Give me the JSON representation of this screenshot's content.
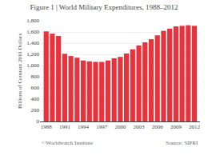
{
  "chart_data": {
    "type": "bar",
    "title": "Figure 1 | World Military Expenditures, 1988–2012",
    "ylabel": "Billions of Constant 2011 Dollars",
    "annotations": [
      "©Worldwatch Institute",
      "Source: SIPRI"
    ],
    "x": [
      1988,
      1989,
      1990,
      1991,
      1992,
      1993,
      1994,
      1995,
      1996,
      1997,
      1998,
      1999,
      2000,
      2001,
      2002,
      2003,
      2004,
      2005,
      2006,
      2007,
      2008,
      2009,
      2010,
      2011,
      2012
    ],
    "values": [
      1610,
      1570,
      1530,
      1210,
      1170,
      1140,
      1090,
      1075,
      1065,
      1065,
      1090,
      1130,
      1155,
      1215,
      1290,
      1360,
      1415,
      1470,
      1540,
      1620,
      1660,
      1700,
      1710,
      1720,
      1710
    ],
    "color": "#e8323c",
    "xlim": [
      1987.0,
      2012.9
    ],
    "xticks": [
      1988,
      1991,
      1994,
      1997,
      2000,
      2003,
      2006,
      2009,
      2012
    ],
    "ylim": [
      0,
      1800
    ],
    "yticks": [
      0,
      200,
      400,
      600,
      800,
      {
        "value": 1000,
        "label": "1,000"
      },
      {
        "value": 1200,
        "label": "1,200"
      },
      {
        "value": 1400,
        "label": "1,400"
      },
      {
        "value": 1600,
        "label": "1,600"
      },
      {
        "value": 1800,
        "label": "1,800"
      }
    ],
    "grid": true
  }
}
